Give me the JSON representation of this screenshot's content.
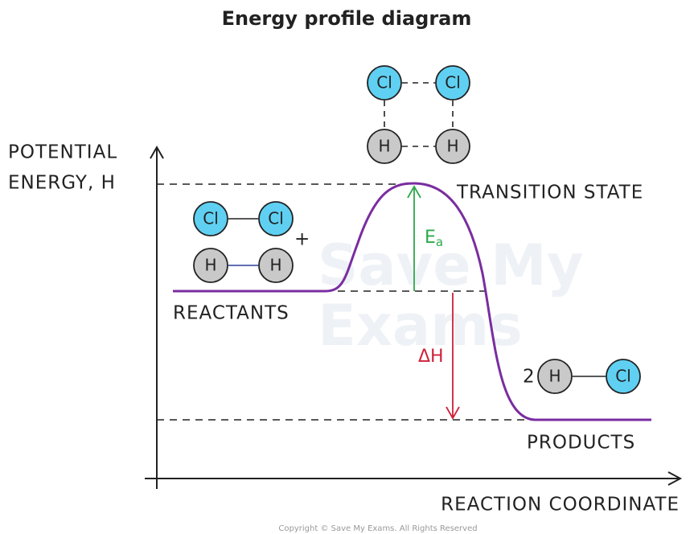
{
  "header": {
    "title": "Energy profile diagram"
  },
  "axes": {
    "y_label": [
      "POTENTIAL",
      "ENERGY, H"
    ],
    "x_label": "REACTION COORDINATE"
  },
  "labels": {
    "transition_state": "TRANSITION STATE",
    "reactants": "REACTANTS",
    "products": "PRODUCTS",
    "activation_energy": {
      "main": "E",
      "sub": "a"
    },
    "enthalpy_change": "ΔH",
    "plus": "+",
    "product_coefficient": "2"
  },
  "atoms": [
    {
      "label": "Cl"
    },
    {
      "label": "Cl"
    },
    {
      "label": "H"
    },
    {
      "label": "H"
    },
    {
      "label": "Cl"
    },
    {
      "label": "Cl"
    },
    {
      "label": "H"
    },
    {
      "label": "H"
    },
    {
      "label": "H"
    },
    {
      "label": "Cl"
    }
  ],
  "watermark": [
    "Save My",
    "Exams"
  ],
  "footer": {
    "copyright": "Copyright © Save My Exams. All Rights Reserved"
  }
}
